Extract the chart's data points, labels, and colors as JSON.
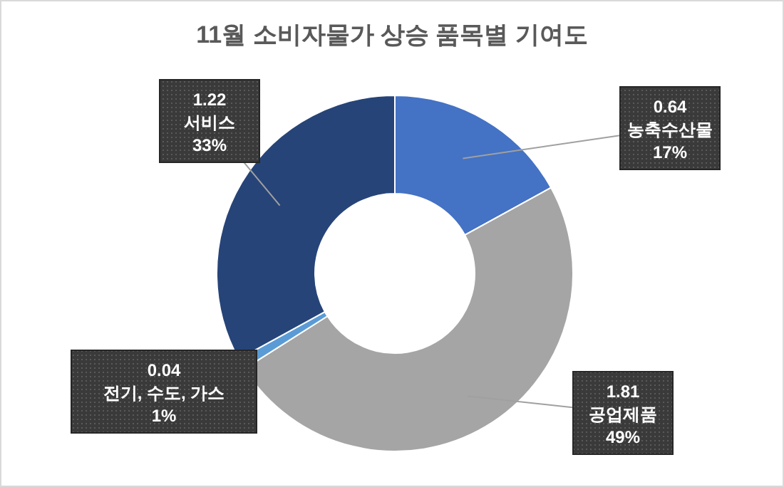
{
  "chart_data": {
    "type": "donut",
    "title": "11월 소비자물가 상승 품목별 기여도",
    "categories": [
      "농축수산물",
      "공업제품",
      "전기, 수도, 가스",
      "서비스"
    ],
    "values": [
      17,
      49,
      1,
      33
    ],
    "value_labels": [
      "17%",
      "49%",
      "1%",
      "33%"
    ],
    "annotations": [
      {
        "text": "0.64",
        "x": "농축수산물"
      },
      {
        "text": "1.81",
        "x": "공업제품"
      },
      {
        "text": "0.04",
        "x": "전기, 수도, 가스"
      },
      {
        "text": "1.22",
        "x": "서비스"
      }
    ],
    "colors": [
      "#4472c4",
      "#a5a5a5",
      "#5b9bd5",
      "#264478"
    ]
  }
}
